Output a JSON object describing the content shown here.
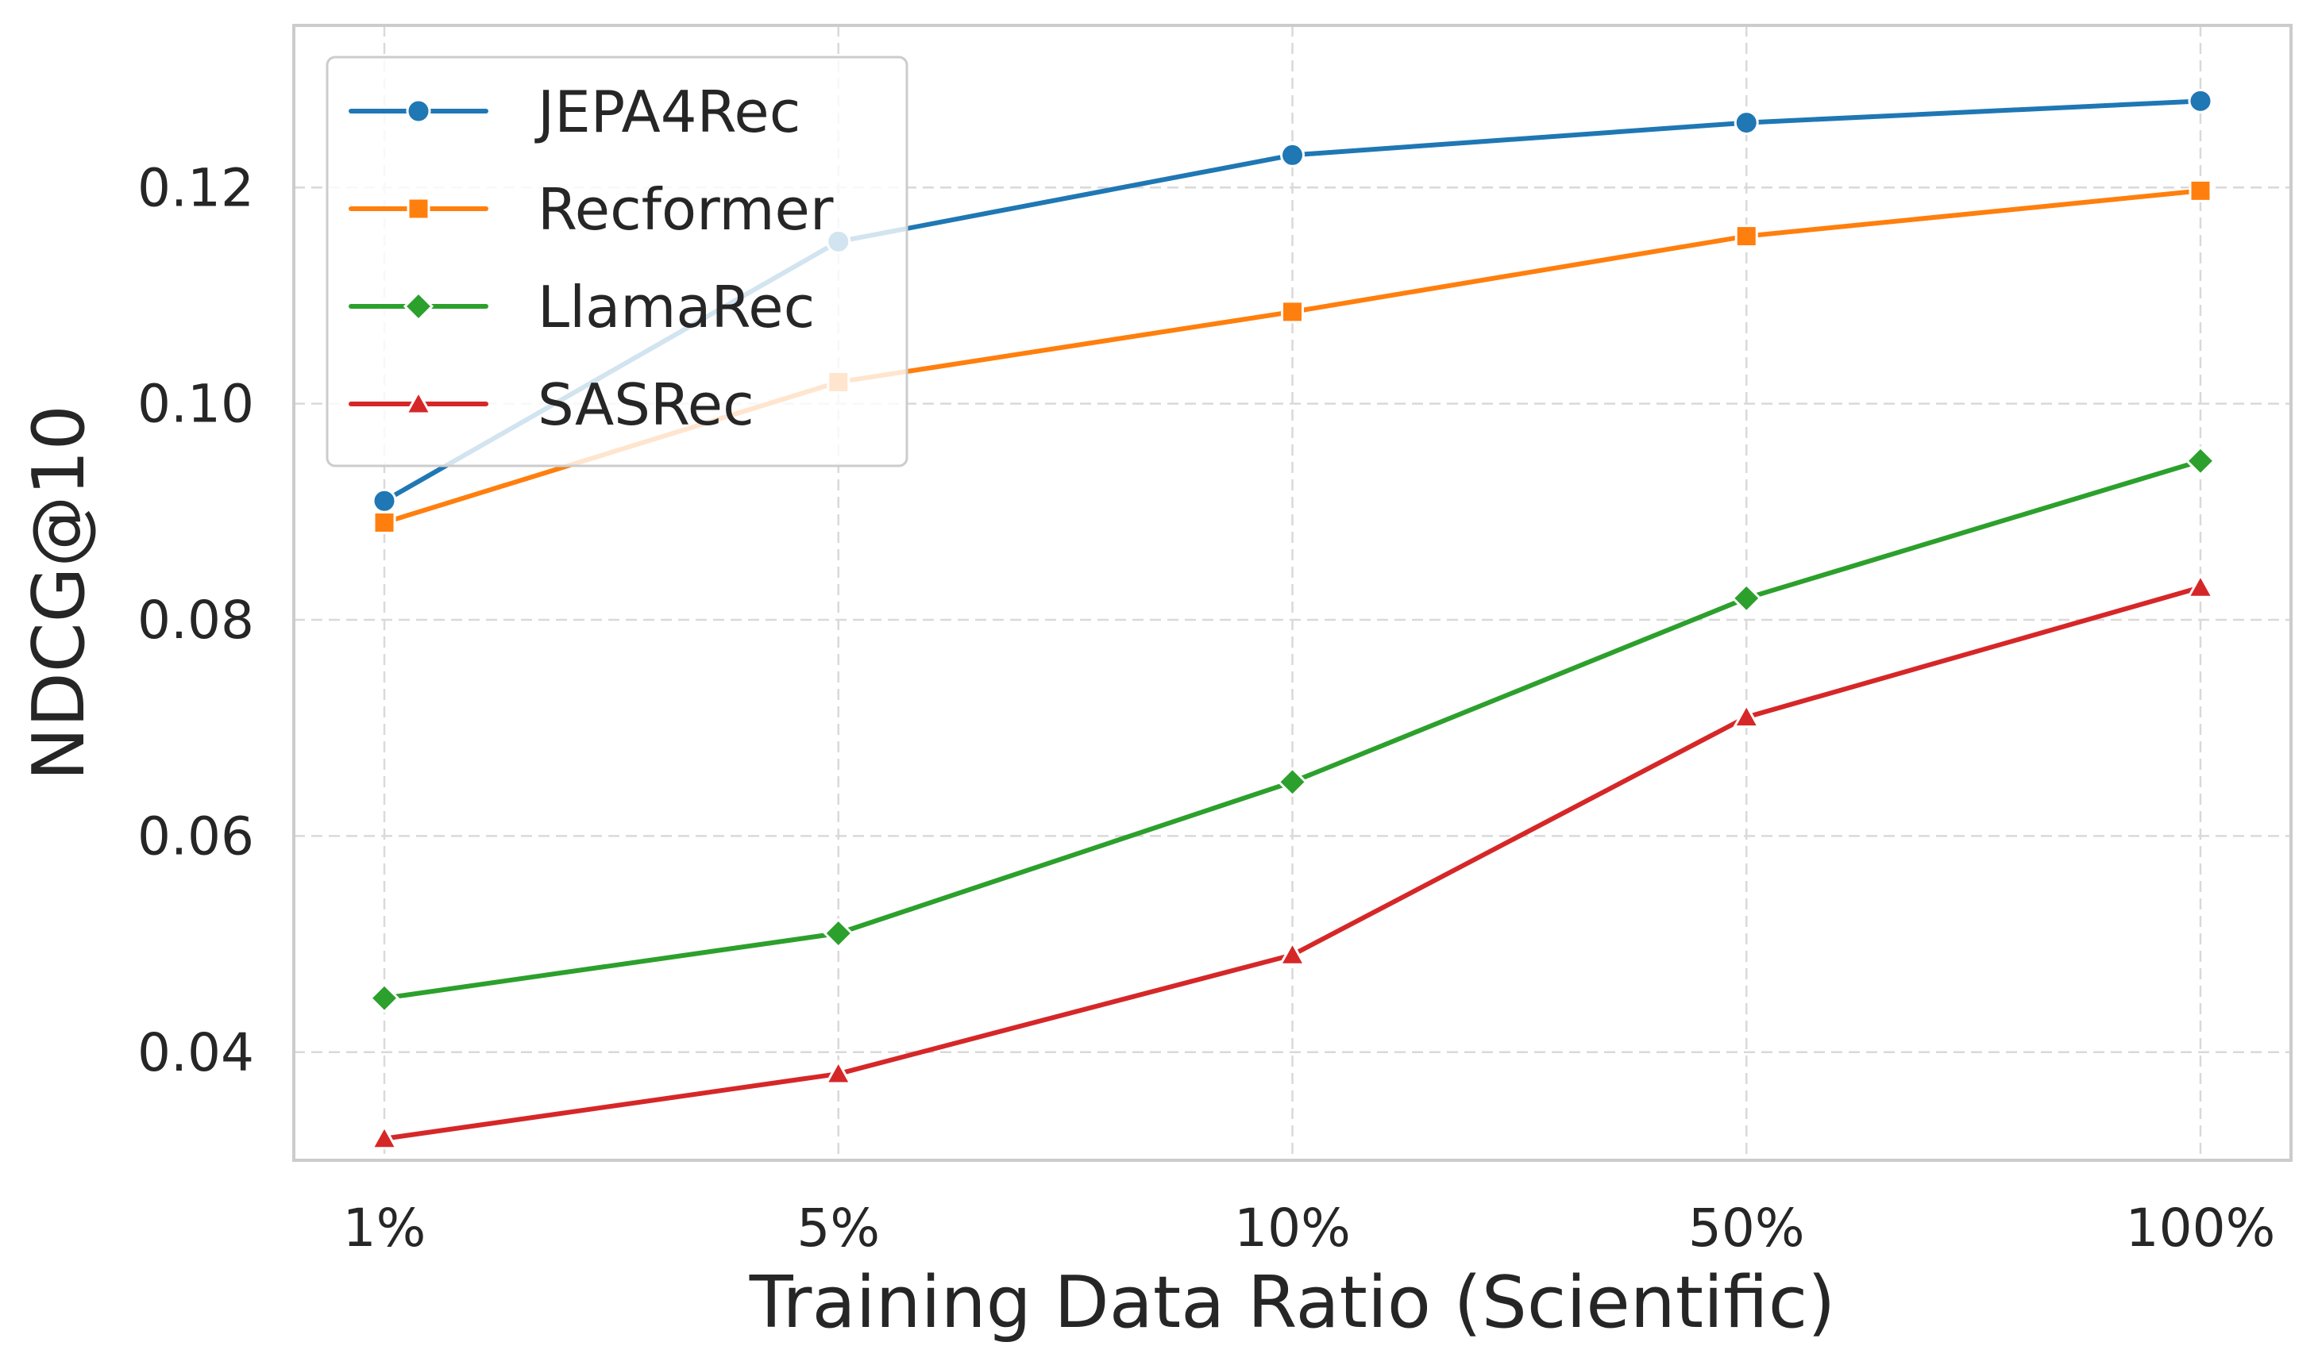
{
  "chart_data": {
    "type": "line",
    "title": "",
    "xlabel": "Training Data Ratio (Scientific)",
    "ylabel": "NDCG@10",
    "categories": [
      "1%",
      "5%",
      "10%",
      "50%",
      "100%"
    ],
    "ylim": [
      0.03,
      0.135
    ],
    "yticks": [
      0.04,
      0.06,
      0.08,
      0.1,
      0.12
    ],
    "ytick_labels": [
      "0.04",
      "0.06",
      "0.08",
      "0.10",
      "0.12"
    ],
    "grid": true,
    "legend_position": "top-left",
    "series": [
      {
        "name": "JEPA4Rec",
        "color": "#1f77b4",
        "marker": "circle",
        "values": [
          0.091,
          0.115,
          0.123,
          0.126,
          0.128
        ]
      },
      {
        "name": "Recformer",
        "color": "#ff7f0e",
        "marker": "square",
        "values": [
          0.089,
          0.102,
          0.1085,
          0.1155,
          0.1197
        ]
      },
      {
        "name": "LlamaRec",
        "color": "#2ca02c",
        "marker": "diamond",
        "values": [
          0.045,
          0.051,
          0.065,
          0.082,
          0.0947
        ]
      },
      {
        "name": "SASRec",
        "color": "#d62728",
        "marker": "triangle",
        "values": [
          0.032,
          0.038,
          0.049,
          0.071,
          0.083
        ]
      }
    ]
  }
}
